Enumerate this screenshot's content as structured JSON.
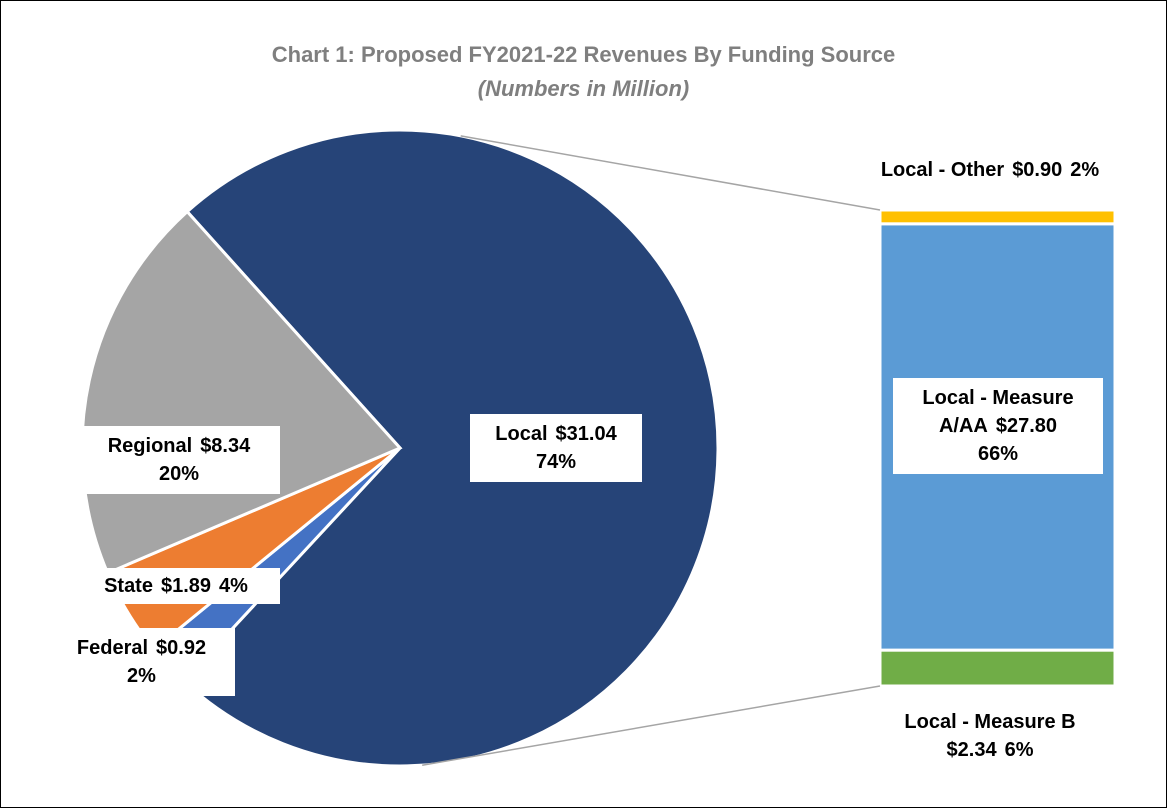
{
  "chart_data": {
    "type": "pie",
    "title": "Chart 1: Proposed FY2021-22 Revenues By Funding Source",
    "subtitle": "(Numbers in Million)",
    "categories": [
      "Local",
      "Federal",
      "State",
      "Regional"
    ],
    "values": [
      31.04,
      0.92,
      1.89,
      8.34
    ],
    "value_labels": [
      "$31.04",
      "$0.92",
      "$1.89",
      "$8.34"
    ],
    "percents": [
      74,
      2,
      4,
      20
    ],
    "percent_labels": [
      "74%",
      "2%",
      "4%",
      "20%"
    ],
    "colors": [
      "#264478",
      "#4472c4",
      "#ed7d31",
      "#a5a5a5"
    ],
    "breakdown": {
      "categories": [
        "Local - Measure B",
        "Local - Measure A/AA",
        "Local - Other"
      ],
      "values": [
        2.34,
        27.8,
        0.9
      ],
      "value_labels": [
        "$2.34",
        "$27.80",
        "$0.90"
      ],
      "percents": [
        6,
        66,
        2
      ],
      "percent_labels": [
        "6%",
        "66%",
        "2%"
      ],
      "colors": [
        "#70ad47",
        "#5b9bd5",
        "#ffc000"
      ]
    }
  }
}
